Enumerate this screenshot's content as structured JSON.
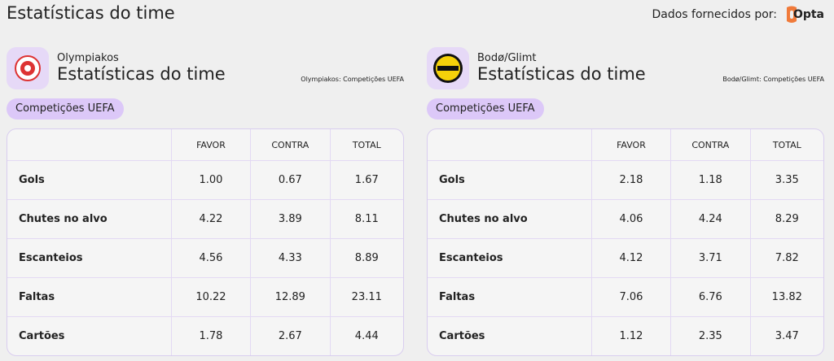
{
  "header": {
    "title": "Estatísticas do time",
    "provider": "Dados fornecidos por:",
    "brand": "Opta"
  },
  "panels": [
    {
      "team": "Olympiakos",
      "title": "Estatísticas do time",
      "source": "Olympiakos: Competições UEFA",
      "tag": "Competições UEFA",
      "table": {
        "columns": [
          "FAVOR",
          "CONTRA",
          "TOTAL"
        ],
        "rows": [
          [
            "Gols",
            "1.00",
            "0.67",
            "1.67"
          ],
          [
            "Chutes no alvo",
            "4.22",
            "3.89",
            "8.11"
          ],
          [
            "Escanteios",
            "4.56",
            "4.33",
            "8.89"
          ],
          [
            "Faltas",
            "10.22",
            "12.89",
            "23.11"
          ],
          [
            "Cartões",
            "1.78",
            "2.67",
            "4.44"
          ]
        ]
      }
    },
    {
      "team": "Bodø/Glimt",
      "title": "Estatísticas do time",
      "source": "Bodø/Glimt: Competições UEFA",
      "tag": "Competições UEFA",
      "table": {
        "columns": [
          "FAVOR",
          "CONTRA",
          "TOTAL"
        ],
        "rows": [
          [
            "Gols",
            "2.18",
            "1.18",
            "3.35"
          ],
          [
            "Chutes no alvo",
            "4.06",
            "4.24",
            "8.29"
          ],
          [
            "Escanteios",
            "4.12",
            "3.71",
            "7.82"
          ],
          [
            "Faltas",
            "7.06",
            "6.76",
            "13.82"
          ],
          [
            "Cartões",
            "1.12",
            "2.35",
            "3.47"
          ]
        ]
      }
    }
  ]
}
